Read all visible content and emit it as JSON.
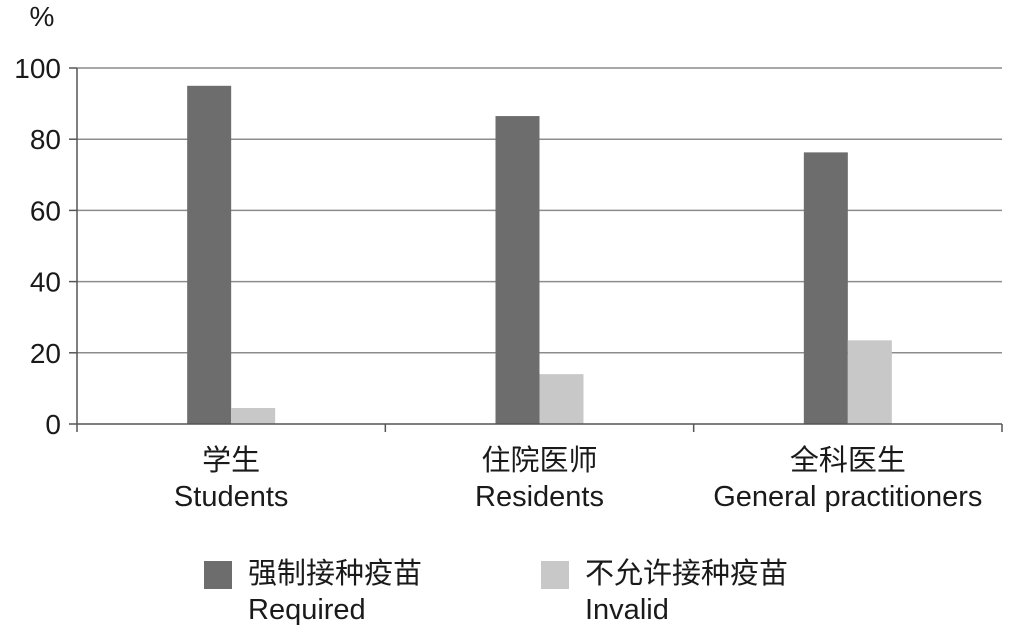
{
  "chart_data": {
    "type": "bar",
    "ylabel": "%",
    "ylim": [
      0,
      100
    ],
    "yticks": [
      0,
      20,
      40,
      60,
      80,
      100
    ],
    "grid": true,
    "categories": [
      {
        "zh": "学生",
        "en": "Students"
      },
      {
        "zh": "住院医师",
        "en": "Residents"
      },
      {
        "zh": "全科医生",
        "en": "General practitioners"
      }
    ],
    "series": [
      {
        "zh": "强制接种疫苗",
        "en": "Required",
        "color": "#6d6d6d",
        "values": [
          95,
          86.5,
          76.3
        ]
      },
      {
        "zh": "不允许接种疫苗",
        "en": "Invalid",
        "color": "#c8c8c8",
        "values": [
          4.5,
          14,
          23.5
        ]
      }
    ],
    "legend_position": "bottom"
  }
}
